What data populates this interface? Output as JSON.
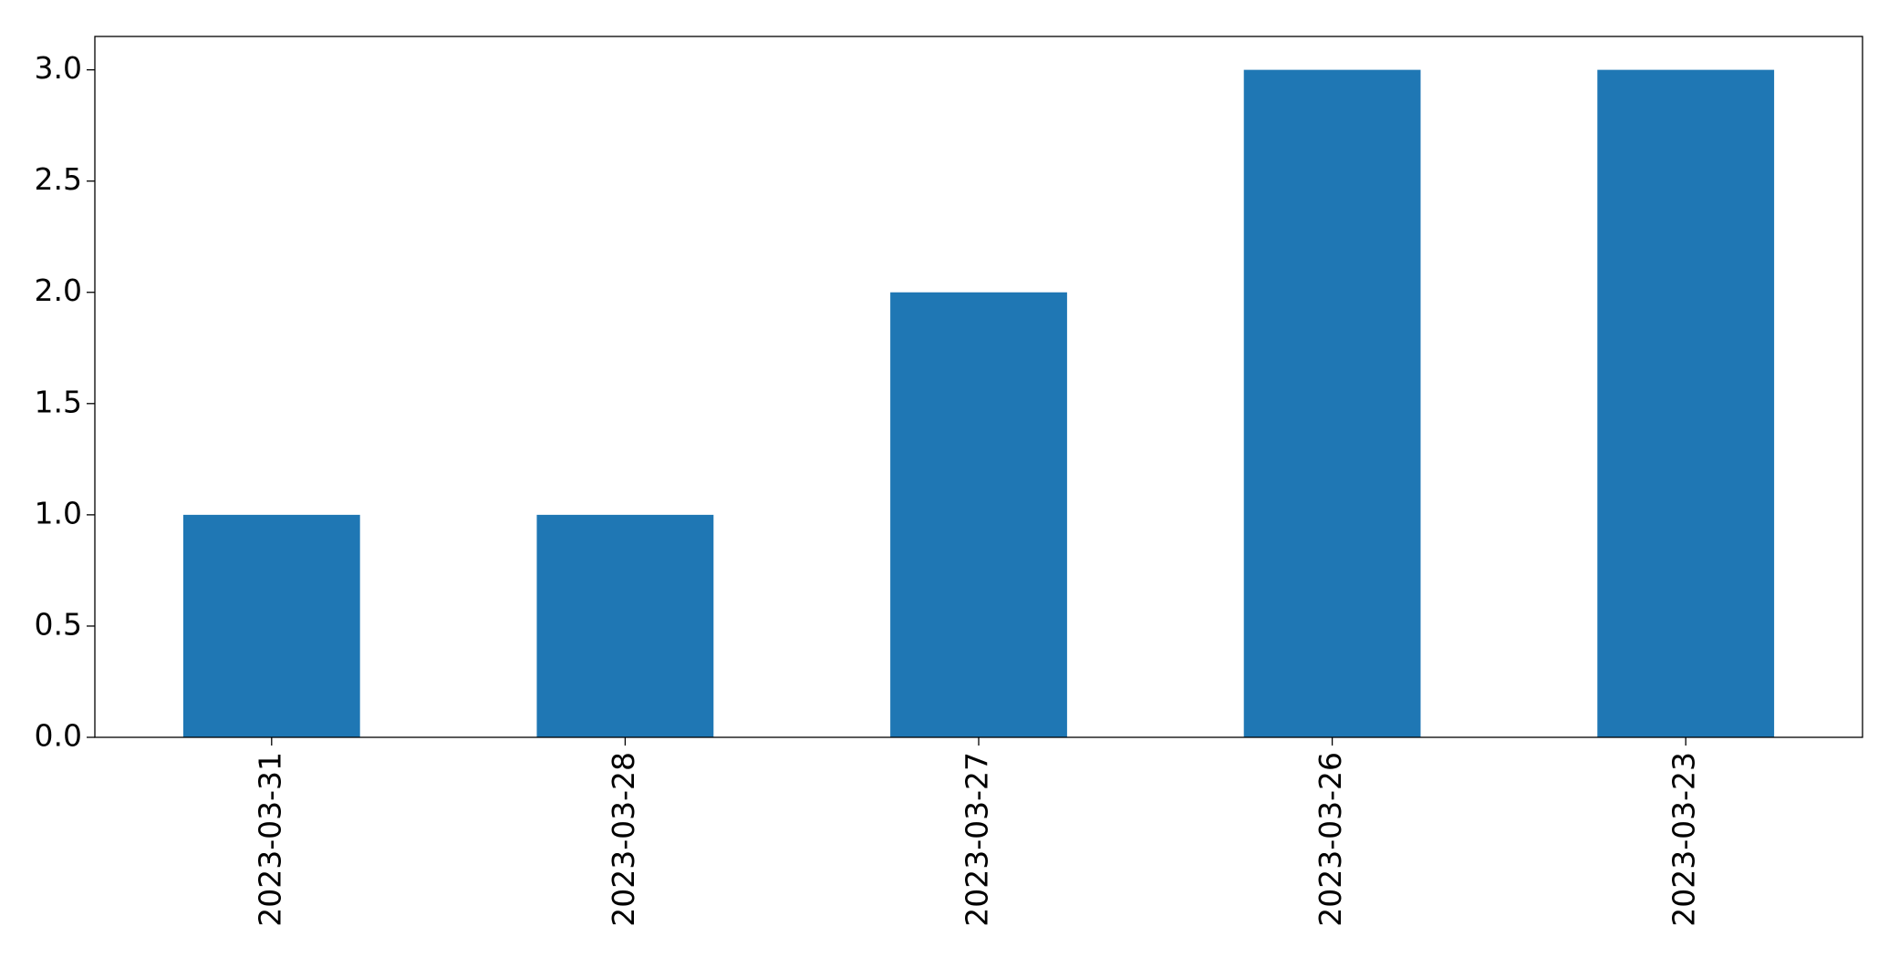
{
  "chart_data": {
    "type": "bar",
    "categories": [
      "2023-03-31",
      "2023-03-28",
      "2023-03-27",
      "2023-03-26",
      "2023-03-23"
    ],
    "values": [
      1,
      1,
      2,
      3,
      3
    ],
    "color": "#1f77b4",
    "ylim": [
      0,
      3.15
    ],
    "yticks": [
      {
        "value": 0,
        "label": "0.0"
      },
      0.5,
      {
        "value": 1,
        "label": "1.0"
      },
      1.5,
      {
        "value": 2,
        "label": "2.0"
      },
      2.5,
      {
        "value": 3,
        "label": "3.0"
      }
    ]
  }
}
